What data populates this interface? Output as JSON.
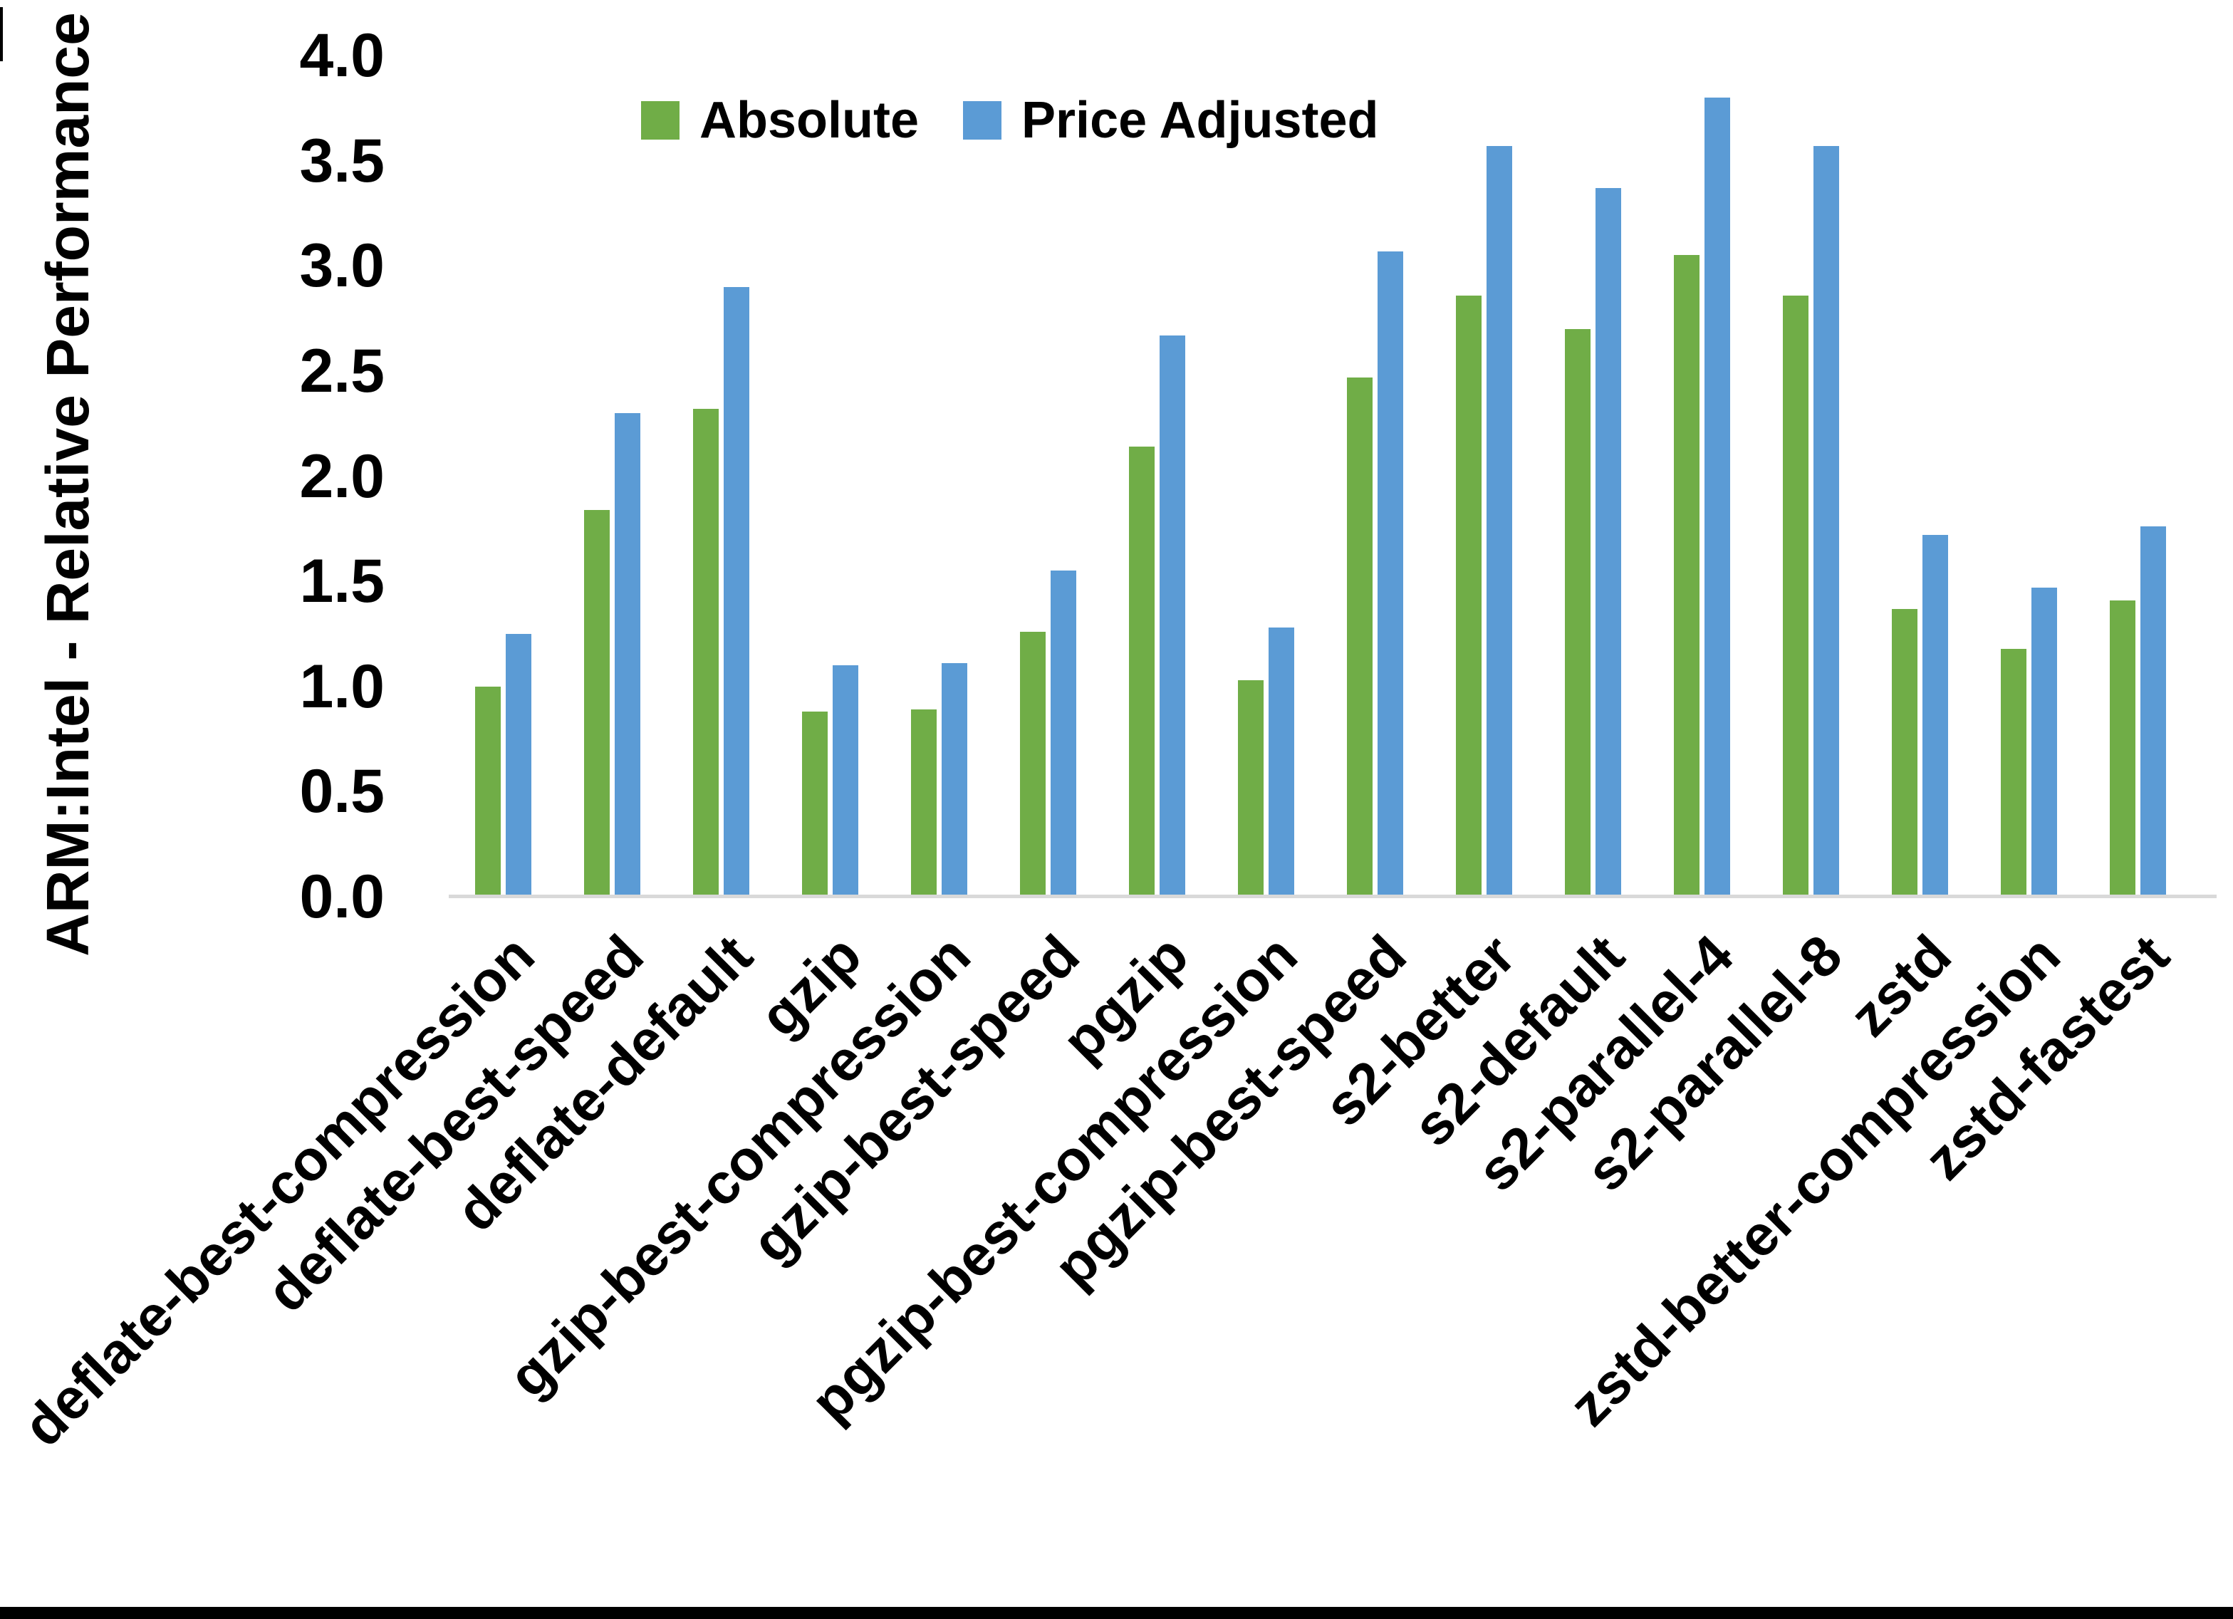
{
  "page": {
    "background": "#ffffff",
    "axis_line_color": "#d9d9d9",
    "bottom_border_color": "#000000"
  },
  "y_axis": {
    "title": "ARM:Intel - Relative Performance",
    "tick_labels": [
      "0.0",
      "0.5",
      "1.0",
      "1.5",
      "2.0",
      "2.5",
      "3.0",
      "3.5",
      "4.0"
    ]
  },
  "legend": {
    "items": [
      {
        "label": "Absolute",
        "color": "#70AD47"
      },
      {
        "label": "Price Adjusted",
        "color": "#5B9BD5"
      }
    ]
  },
  "chart_data": {
    "type": "bar",
    "title": "",
    "xlabel": "",
    "ylabel": "ARM:Intel - Relative Performance",
    "ylim": [
      0,
      4
    ],
    "ytick_step": 0.5,
    "grid": false,
    "legend_position": "top-center",
    "categories": [
      "deflate-best-compression",
      "deflate-best-speed",
      "deflate-default",
      "gzip",
      "gzip-best-compression",
      "gzip-best-speed",
      "pgzip",
      "pgzip-best-compression",
      "pgzip-best-speed",
      "s2-better",
      "s2-default",
      "s2-parallel-4",
      "s2-parallel-8",
      "zstd",
      "zstd-better-compression",
      "zstd-fastest"
    ],
    "series": [
      {
        "name": "Absolute",
        "color": "#70AD47",
        "values": [
          1.0,
          1.84,
          2.32,
          0.88,
          0.89,
          1.26,
          2.14,
          1.03,
          2.47,
          2.86,
          2.7,
          3.05,
          2.86,
          1.37,
          1.18,
          1.41
        ]
      },
      {
        "name": "Price Adjusted",
        "color": "#5B9BD5",
        "values": [
          1.25,
          2.3,
          2.9,
          1.1,
          1.11,
          1.55,
          2.67,
          1.28,
          3.07,
          3.57,
          3.37,
          3.8,
          3.57,
          1.72,
          1.47,
          1.76
        ]
      }
    ]
  }
}
